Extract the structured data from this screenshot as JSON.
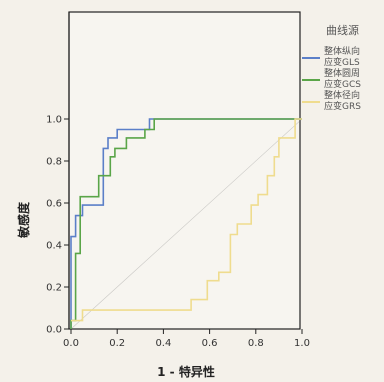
{
  "chart_data": {
    "type": "line",
    "title": "",
    "xlabel": "1 - 特异性",
    "ylabel": "敏感度",
    "xlim": [
      0,
      1
    ],
    "ylim": [
      0,
      1
    ],
    "x_ticks": [
      "0.0",
      "0.2",
      "0.4",
      "0.6",
      "0.8",
      "1.0"
    ],
    "y_ticks": [
      "0.0",
      "0.2",
      "0.4",
      "0.6",
      "0.8",
      "1.0"
    ],
    "grid": false,
    "legend_position": "right",
    "legend_title": "曲线源",
    "series": [
      {
        "name": "整体纵向应变GLS",
        "color": "#5b7fc8",
        "points": [
          [
            0,
            0
          ],
          [
            0,
            0.44
          ],
          [
            0.02,
            0.44
          ],
          [
            0.02,
            0.54
          ],
          [
            0.05,
            0.54
          ],
          [
            0.05,
            0.59
          ],
          [
            0.14,
            0.59
          ],
          [
            0.14,
            0.86
          ],
          [
            0.16,
            0.86
          ],
          [
            0.16,
            0.91
          ],
          [
            0.2,
            0.91
          ],
          [
            0.2,
            0.95
          ],
          [
            0.34,
            0.95
          ],
          [
            0.34,
            1.0
          ],
          [
            1.0,
            1.0
          ]
        ]
      },
      {
        "name": "整体圆周应变GCS",
        "color": "#5aa548",
        "points": [
          [
            0,
            0
          ],
          [
            0,
            0.04
          ],
          [
            0.02,
            0.04
          ],
          [
            0.02,
            0.36
          ],
          [
            0.04,
            0.36
          ],
          [
            0.04,
            0.63
          ],
          [
            0.12,
            0.63
          ],
          [
            0.12,
            0.73
          ],
          [
            0.17,
            0.73
          ],
          [
            0.17,
            0.82
          ],
          [
            0.19,
            0.82
          ],
          [
            0.19,
            0.86
          ],
          [
            0.24,
            0.86
          ],
          [
            0.24,
            0.91
          ],
          [
            0.32,
            0.91
          ],
          [
            0.32,
            0.95
          ],
          [
            0.36,
            0.95
          ],
          [
            0.36,
            1.0
          ],
          [
            1.0,
            1.0
          ]
        ]
      },
      {
        "name": "整体径向应变GRS",
        "color": "#efdc8e",
        "points": [
          [
            0,
            0.04
          ],
          [
            0.05,
            0.04
          ],
          [
            0.05,
            0.09
          ],
          [
            0.52,
            0.09
          ],
          [
            0.52,
            0.14
          ],
          [
            0.59,
            0.14
          ],
          [
            0.59,
            0.23
          ],
          [
            0.64,
            0.23
          ],
          [
            0.64,
            0.27
          ],
          [
            0.69,
            0.27
          ],
          [
            0.69,
            0.45
          ],
          [
            0.72,
            0.45
          ],
          [
            0.72,
            0.5
          ],
          [
            0.78,
            0.5
          ],
          [
            0.78,
            0.59
          ],
          [
            0.81,
            0.59
          ],
          [
            0.81,
            0.64
          ],
          [
            0.85,
            0.64
          ],
          [
            0.85,
            0.73
          ],
          [
            0.88,
            0.73
          ],
          [
            0.88,
            0.82
          ],
          [
            0.9,
            0.82
          ],
          [
            0.9,
            0.91
          ],
          [
            0.97,
            0.91
          ],
          [
            0.97,
            1.0
          ],
          [
            1.0,
            1.0
          ]
        ]
      }
    ]
  },
  "colors": {
    "plot_background": "#f7f5f0",
    "frame": "#222222",
    "reference_line": "#777777"
  }
}
